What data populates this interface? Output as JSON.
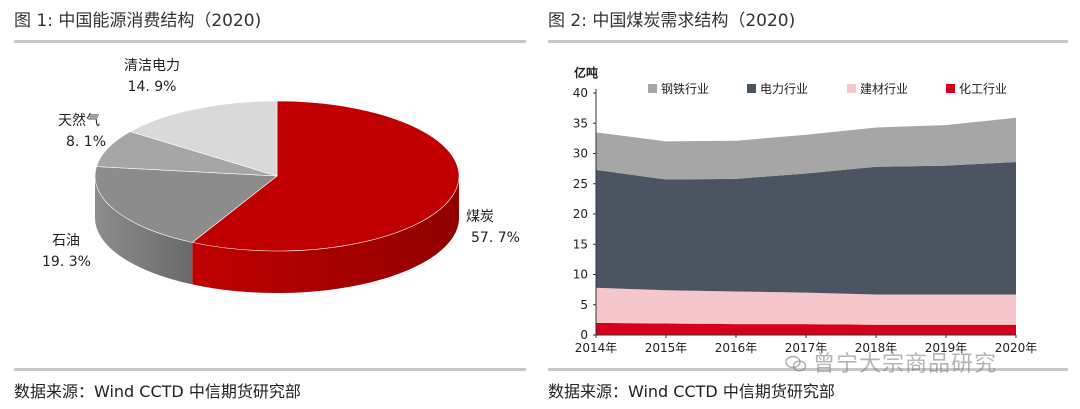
{
  "left": {
    "title": "图 1:  中国能源消费结构（2020)",
    "source": "数据来源：Wind CCTD 中信期货研究部"
  },
  "right": {
    "title": "图 2:  中国煤炭需求结构（2020)",
    "source": "数据来源：Wind CCTD 中信期货研究部"
  },
  "watermark": {
    "text": "曾宁大宗商品研究"
  },
  "colors": {
    "coal": "#c00000",
    "oil": "#8c8c8c",
    "gas": "#a6a6a6",
    "clean": "#d9d9d9",
    "steel": "#a6a6a6",
    "power": "#4a5561",
    "building": "#f5c6cb",
    "chemical": "#d6001c"
  },
  "chart_data": [
    {
      "type": "pie",
      "labels": [
        "煤炭",
        "石油",
        "天然气",
        "清洁电力"
      ],
      "values": [
        57.7,
        19.3,
        8.1,
        14.9
      ],
      "value_labels": [
        "57. 7%",
        "19. 3%",
        "8. 1%",
        "14. 9%"
      ],
      "colors": [
        "#c00000",
        "#8c8c8c",
        "#a6a6a6",
        "#d9d9d9"
      ],
      "title": ""
    },
    {
      "type": "area",
      "ylabel": "亿吨",
      "ylim": [
        0,
        40
      ],
      "yticks": [
        0,
        5,
        10,
        15,
        20,
        25,
        30,
        35,
        40
      ],
      "x": [
        "2014年",
        "2015年",
        "2016年",
        "2017年",
        "2018年",
        "2019年",
        "2020年"
      ],
      "legend_position": "top",
      "series": [
        {
          "name": "钢铁行业",
          "color": "#a6a6a6",
          "values": [
            6.2,
            6.3,
            6.3,
            6.4,
            6.5,
            6.7,
            7.3
          ]
        },
        {
          "name": "电力行业",
          "color": "#4a5561",
          "values": [
            19.5,
            18.3,
            18.6,
            19.7,
            21.1,
            21.3,
            21.9
          ]
        },
        {
          "name": "建材行业",
          "color": "#f5c6cb",
          "values": [
            5.8,
            5.5,
            5.4,
            5.2,
            5.0,
            5.0,
            5.0
          ]
        },
        {
          "name": "化工行业",
          "color": "#d6001c",
          "values": [
            2.0,
            1.9,
            1.8,
            1.8,
            1.7,
            1.7,
            1.7
          ]
        }
      ]
    }
  ]
}
